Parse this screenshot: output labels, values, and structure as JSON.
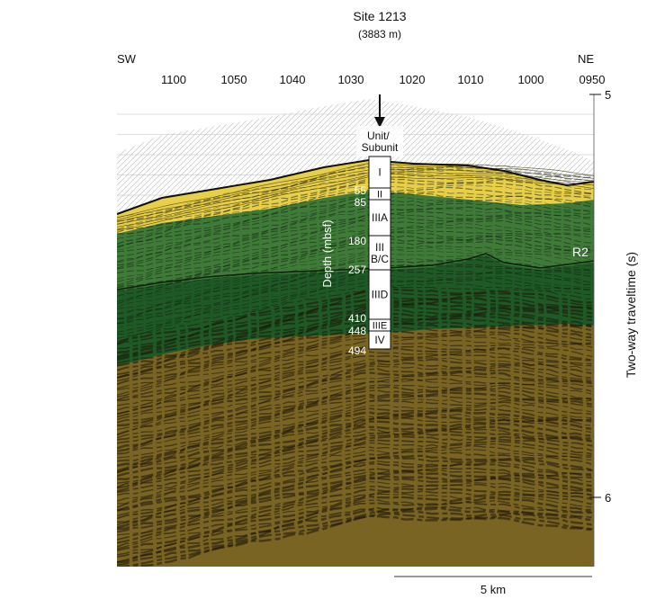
{
  "site": {
    "title": "Site 1213",
    "depth": "(3883 m)"
  },
  "directions": {
    "left": "SW",
    "right": "NE"
  },
  "shotpoints": [
    "1100",
    "1050",
    "1040",
    "1030",
    "1020",
    "1010",
    "1000",
    "0950"
  ],
  "time_axis": {
    "label": "Two-way traveltime (s)",
    "ticks": [
      "5",
      "6"
    ]
  },
  "reflector_label": "R2",
  "column": {
    "header": "Unit/\nSubunit",
    "depth_axis_label": "Depth (mbsf)",
    "units": [
      {
        "name": "I"
      },
      {
        "name": "II"
      },
      {
        "name": "IIIA"
      },
      {
        "name": "III\nB/C"
      },
      {
        "name": "IIID"
      },
      {
        "name": "IIIE"
      },
      {
        "name": "IV"
      }
    ],
    "depths": [
      "55",
      "85",
      "180",
      "257",
      "410",
      "448",
      "494"
    ]
  },
  "scale_bar": {
    "label": "5 km"
  },
  "colors": {
    "yellow": "#e8cf4a",
    "light_green": "#3f7a38",
    "dark_green": "#1f5a26",
    "brown": "#7a6424",
    "water": "#d6d6d6"
  }
}
